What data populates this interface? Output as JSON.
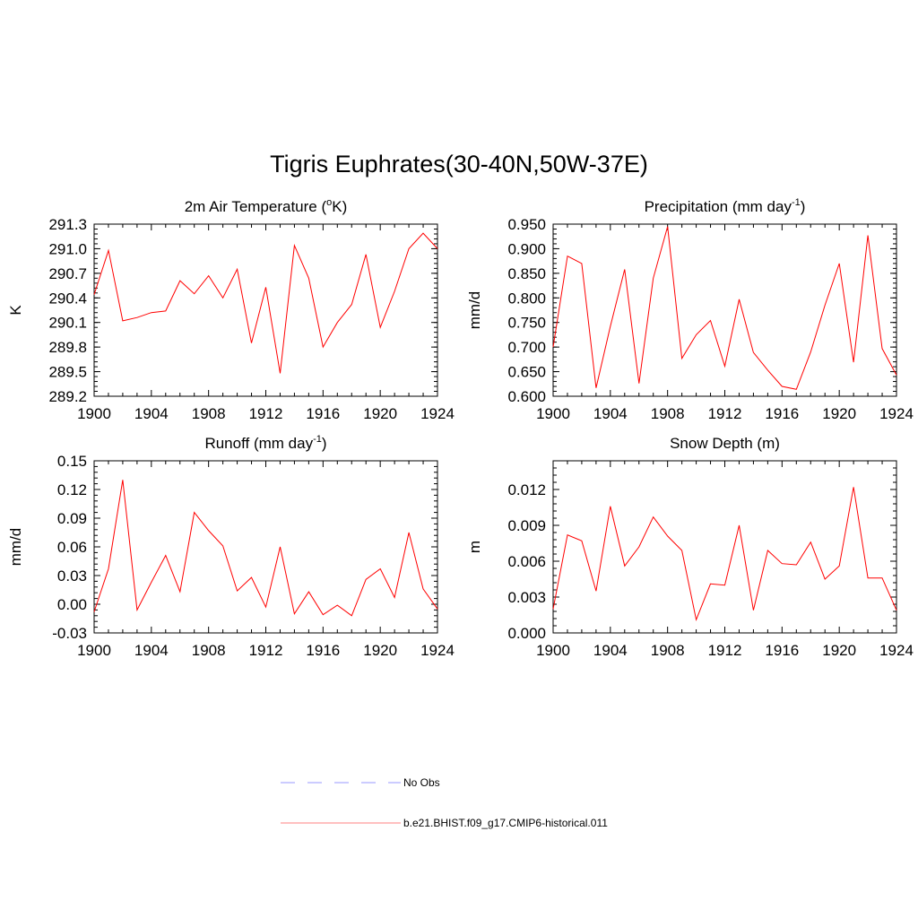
{
  "title": "Tigris Euphrates(30-40N,50W-37E)",
  "colors": {
    "model_line": "#ff0000",
    "obs_line": "#9999ff",
    "axis": "#000000"
  },
  "legend": {
    "items": [
      {
        "label": "No Obs",
        "style": "dashed",
        "color": "#9999ff"
      },
      {
        "label": "b.e21.BHIST.f09_g17.CMIP6-historical.011",
        "style": "solid",
        "color": "#ff8080"
      }
    ]
  },
  "chart_data": [
    {
      "id": "temp",
      "type": "line",
      "title": "2m Air Temperature (",
      "title_sup": "o",
      "title_end": "K)",
      "ylabel": "K",
      "xlim": [
        1900,
        1924
      ],
      "ylim": [
        289.2,
        291.3
      ],
      "xticks": [
        "1900",
        "1904",
        "1908",
        "1912",
        "1916",
        "1920",
        "1924"
      ],
      "yticks": [
        "289.2",
        "289.5",
        "289.8",
        "290.1",
        "290.4",
        "290.7",
        "291.0",
        "291.3"
      ],
      "x": [
        1900,
        1901,
        1902,
        1903,
        1904,
        1905,
        1906,
        1907,
        1908,
        1909,
        1910,
        1911,
        1912,
        1913,
        1914,
        1915,
        1916,
        1917,
        1918,
        1919,
        1920,
        1921,
        1922,
        1923,
        1924
      ],
      "values": [
        290.44,
        290.98,
        290.12,
        290.16,
        290.22,
        290.24,
        290.61,
        290.45,
        290.67,
        290.4,
        290.75,
        289.85,
        290.53,
        289.48,
        291.04,
        290.64,
        289.8,
        290.1,
        290.32,
        290.93,
        290.04,
        290.48,
        291.0,
        291.19,
        291.0
      ]
    },
    {
      "id": "precip",
      "type": "line",
      "title": "Precipitation (mm day",
      "title_sup": "-1",
      "title_end": ")",
      "ylabel": "mm/d",
      "xlim": [
        1900,
        1924
      ],
      "ylim": [
        0.6,
        0.95
      ],
      "xticks": [
        "1900",
        "1904",
        "1908",
        "1912",
        "1916",
        "1920",
        "1924"
      ],
      "yticks": [
        "0.600",
        "0.650",
        "0.700",
        "0.750",
        "0.800",
        "0.850",
        "0.900",
        "0.950"
      ],
      "x": [
        1900,
        1901,
        1902,
        1903,
        1904,
        1905,
        1906,
        1907,
        1908,
        1909,
        1910,
        1911,
        1912,
        1913,
        1914,
        1915,
        1916,
        1917,
        1918,
        1919,
        1920,
        1921,
        1922,
        1923,
        1924
      ],
      "values": [
        0.7,
        0.885,
        0.87,
        0.617,
        0.742,
        0.858,
        0.626,
        0.84,
        0.945,
        0.677,
        0.725,
        0.754,
        0.661,
        0.797,
        0.689,
        0.653,
        0.62,
        0.614,
        0.69,
        0.785,
        0.87,
        0.669,
        0.927,
        0.697,
        0.643
      ]
    },
    {
      "id": "runoff",
      "type": "line",
      "title": "Runoff (mm day",
      "title_sup": "-1",
      "title_end": ")",
      "ylabel": "mm/d",
      "xlim": [
        1900,
        1924
      ],
      "ylim": [
        -0.03,
        0.15
      ],
      "xticks": [
        "1900",
        "1904",
        "1908",
        "1912",
        "1916",
        "1920",
        "1924"
      ],
      "yticks": [
        "-0.03",
        "0.00",
        "0.03",
        "0.06",
        "0.09",
        "0.12",
        "0.15"
      ],
      "x": [
        1900,
        1901,
        1902,
        1903,
        1904,
        1905,
        1906,
        1907,
        1908,
        1909,
        1910,
        1911,
        1912,
        1913,
        1914,
        1915,
        1916,
        1917,
        1918,
        1919,
        1920,
        1921,
        1922,
        1923,
        1924
      ],
      "values": [
        -0.008,
        0.037,
        0.13,
        -0.006,
        0.023,
        0.051,
        0.013,
        0.096,
        0.077,
        0.061,
        0.014,
        0.028,
        -0.003,
        0.06,
        -0.01,
        0.013,
        -0.011,
        -0.001,
        -0.012,
        0.026,
        0.037,
        0.007,
        0.075,
        0.016,
        -0.005
      ]
    },
    {
      "id": "snow",
      "type": "line",
      "title": "Snow Depth (m)",
      "title_sup": "",
      "title_end": "",
      "ylabel": "m",
      "xlim": [
        1900,
        1924
      ],
      "ylim": [
        0.0,
        0.0144
      ],
      "xticks": [
        "1900",
        "1904",
        "1908",
        "1912",
        "1916",
        "1920",
        "1924"
      ],
      "yticks": [
        "0.000",
        "0.003",
        "0.006",
        "0.009",
        "0.012"
      ],
      "x": [
        1900,
        1901,
        1902,
        1903,
        1904,
        1905,
        1906,
        1907,
        1908,
        1909,
        1910,
        1911,
        1912,
        1913,
        1914,
        1915,
        1916,
        1917,
        1918,
        1919,
        1920,
        1921,
        1922,
        1923,
        1924
      ],
      "values": [
        0.002,
        0.0082,
        0.0077,
        0.0035,
        0.0106,
        0.0056,
        0.0072,
        0.0097,
        0.0081,
        0.0069,
        0.0011,
        0.0041,
        0.004,
        0.009,
        0.0019,
        0.0069,
        0.0058,
        0.0057,
        0.0076,
        0.0045,
        0.0056,
        0.0122,
        0.0046,
        0.0046,
        0.0019
      ]
    }
  ]
}
